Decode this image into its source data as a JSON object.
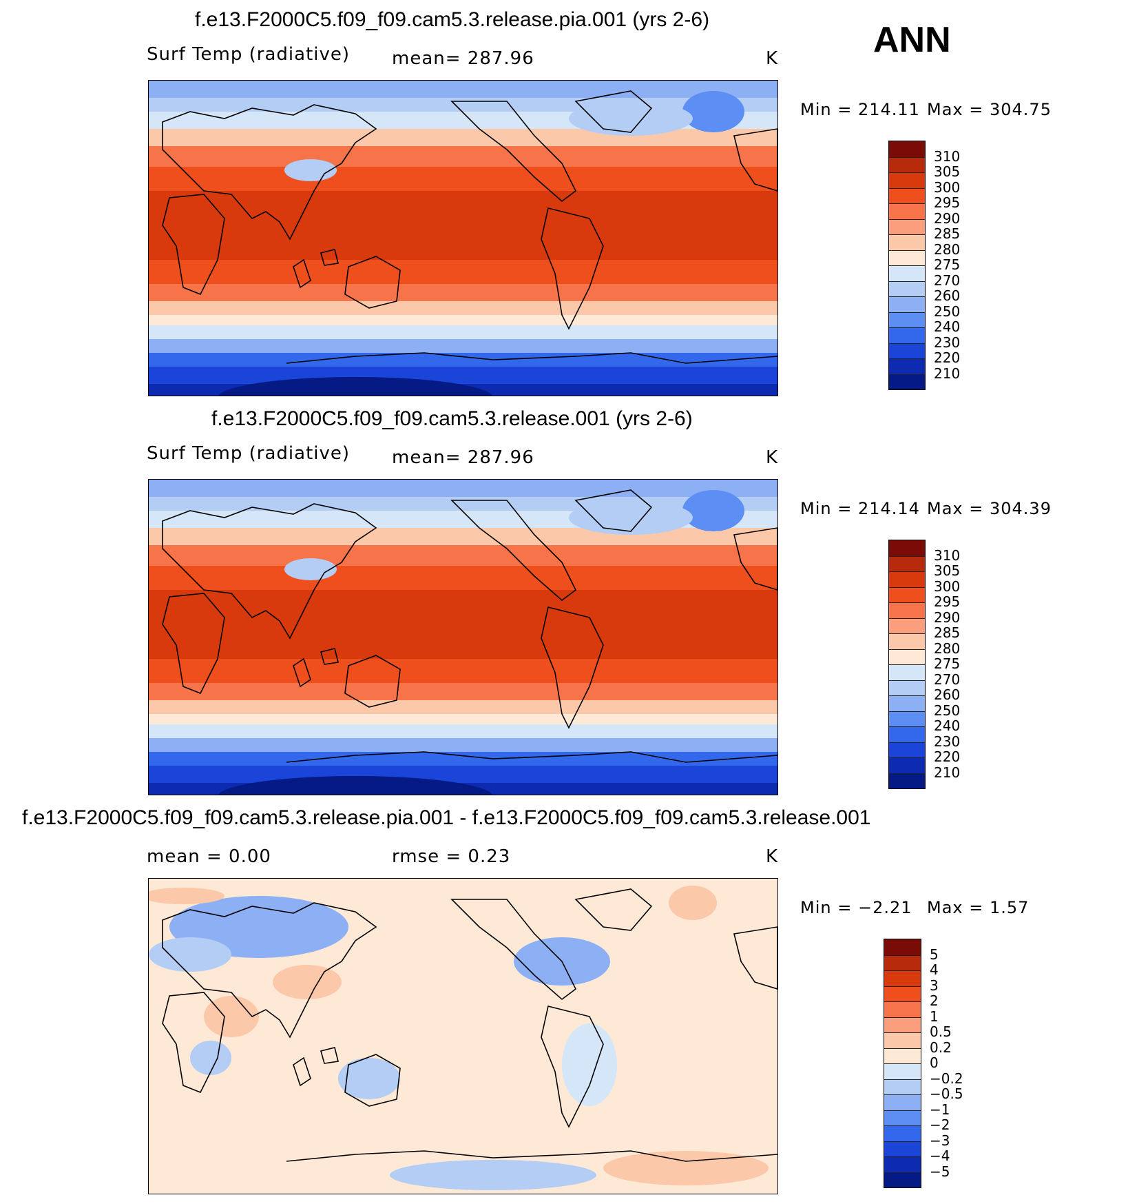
{
  "season": "ANN",
  "units": "K",
  "panels": [
    {
      "title": "f.e13.F2000C5.f09_f09.cam5.3.release.pia.001 (yrs 2-6)",
      "var_label": "Surf Temp (radiative)",
      "stat_text": "mean=  287.96",
      "units": "K",
      "min_label": "Min  =  214.11",
      "max_label": "Max  =  304.75",
      "colorbar": {
        "levels": [
          "310",
          "305",
          "300",
          "295",
          "290",
          "285",
          "280",
          "275",
          "270",
          "260",
          "250",
          "240",
          "230",
          "220",
          "210"
        ],
        "colors": [
          "#7a0b07",
          "#b72a0c",
          "#d83a0d",
          "#ee4f1c",
          "#f7744a",
          "#fb9e7e",
          "#fcc8aa",
          "#fde9d6",
          "#d5e6f8",
          "#b3cdf5",
          "#8db0f5",
          "#5d8ef3",
          "#3468ec",
          "#1a45d8",
          "#0d2bb0",
          "#061a86"
        ]
      },
      "field": "absolute"
    },
    {
      "title": "f.e13.F2000C5.f09_f09.cam5.3.release.001 (yrs 2-6)",
      "var_label": "Surf Temp (radiative)",
      "stat_text": "mean=  287.96",
      "units": "K",
      "min_label": "Min  =  214.14",
      "max_label": "Max  =  304.39",
      "colorbar": {
        "levels": [
          "310",
          "305",
          "300",
          "295",
          "290",
          "285",
          "280",
          "275",
          "270",
          "260",
          "250",
          "240",
          "230",
          "220",
          "210"
        ],
        "colors": [
          "#7a0b07",
          "#b72a0c",
          "#d83a0d",
          "#ee4f1c",
          "#f7744a",
          "#fb9e7e",
          "#fcc8aa",
          "#fde9d6",
          "#d5e6f8",
          "#b3cdf5",
          "#8db0f5",
          "#5d8ef3",
          "#3468ec",
          "#1a45d8",
          "#0d2bb0",
          "#061a86"
        ]
      },
      "field": "absolute"
    },
    {
      "title": "f.e13.F2000C5.f09_f09.cam5.3.release.pia.001 - f.e13.F2000C5.f09_f09.cam5.3.release.001",
      "mean_text": "mean =     0.00",
      "rmse_text": "rmse =     0.23",
      "units": "K",
      "min_label": "Min  =   −2.21",
      "max_label": "Max  =     1.57",
      "colorbar": {
        "levels": [
          "5",
          "4",
          "3",
          "2",
          "1",
          "0.5",
          "0.2",
          "0",
          "−0.2",
          "−0.5",
          "−1",
          "−2",
          "−3",
          "−4",
          "−5"
        ],
        "colors": [
          "#7a0b07",
          "#b72a0c",
          "#d83a0d",
          "#ee4f1c",
          "#f7744a",
          "#fb9e7e",
          "#fcc8aa",
          "#fde9d6",
          "#d5e6f8",
          "#b3cdf5",
          "#8db0f5",
          "#5d8ef3",
          "#3468ec",
          "#1a45d8",
          "#0d2bb0",
          "#061a86"
        ]
      },
      "field": "difference"
    }
  ]
}
